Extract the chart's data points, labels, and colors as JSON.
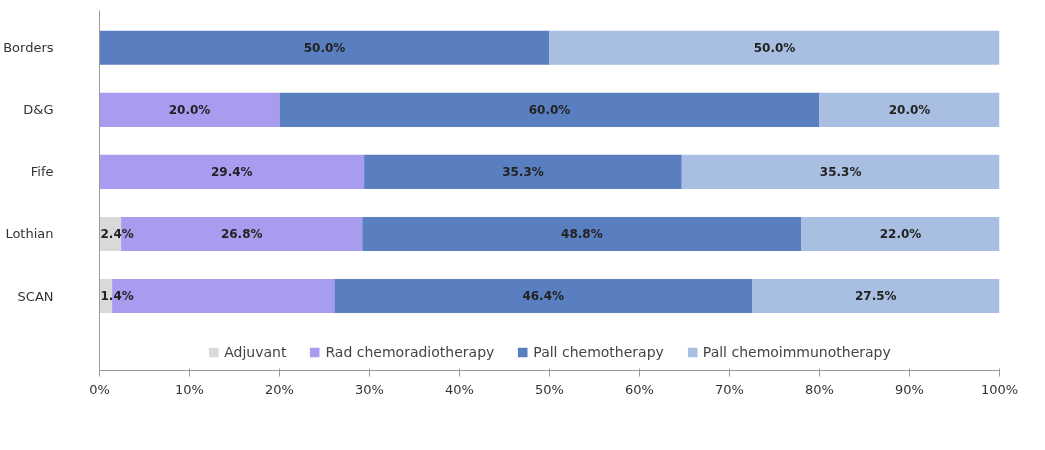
{
  "chart_data": {
    "type": "bar",
    "orientation": "horizontal",
    "stacked": true,
    "categories": [
      "Borders",
      "D&G",
      "Fife",
      "Lothian",
      "SCAN"
    ],
    "series": [
      {
        "name": "Adjuvant",
        "color": "#d9d9d9",
        "values": [
          0,
          0,
          0,
          2.4,
          1.4
        ],
        "value_labels": [
          null,
          null,
          null,
          "2.4%",
          "1.4%"
        ]
      },
      {
        "name": "Rad chemoradiotherapy",
        "color": "#a89cf0",
        "values": [
          0,
          20.0,
          29.4,
          26.8,
          24.7
        ],
        "value_labels": [
          null,
          "20.0%",
          "29.4%",
          "26.8%",
          null
        ]
      },
      {
        "name": "Pall chemotherapy",
        "color": "#5a7fc1",
        "values": [
          50.0,
          60.0,
          35.3,
          48.8,
          46.4
        ],
        "value_labels": [
          "50.0%",
          "60.0%",
          "35.3%",
          "48.8%",
          "46.4%"
        ]
      },
      {
        "name": "Pall chemoimmunotherapy",
        "color": "#a9bfe1",
        "values": [
          50.0,
          20.0,
          35.3,
          22.0,
          27.5
        ],
        "value_labels": [
          "50.0%",
          "20.0%",
          "35.3%",
          "22.0%",
          "27.5%"
        ]
      }
    ],
    "xlim": [
      0,
      100
    ],
    "xticks": [
      {
        "value": 0,
        "label": "0%"
      },
      {
        "value": 10,
        "label": "10%"
      },
      {
        "value": 20,
        "label": "20%"
      },
      {
        "value": 30,
        "label": "30%"
      },
      {
        "value": 40,
        "label": "40%"
      },
      {
        "value": 50,
        "label": "50%"
      },
      {
        "value": 60,
        "label": "60%"
      },
      {
        "value": 70,
        "label": "70%"
      },
      {
        "value": 80,
        "label": "80%"
      },
      {
        "value": 90,
        "label": "90%"
      },
      {
        "value": 100,
        "label": "100%"
      }
    ],
    "grid": false,
    "legend": "bottom"
  }
}
